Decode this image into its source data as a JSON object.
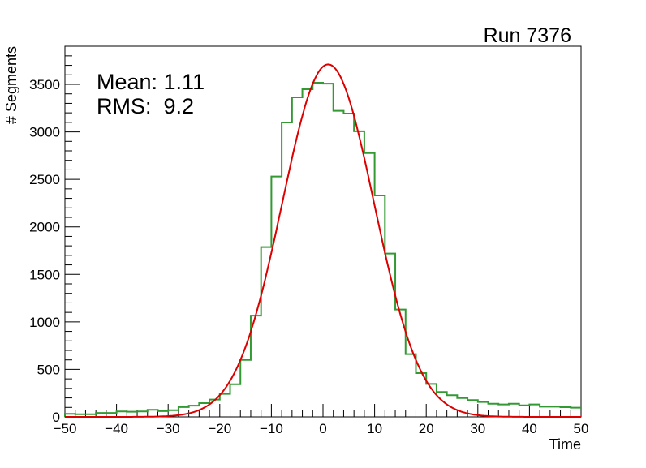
{
  "chart_data": {
    "type": "histogram",
    "title": "Run 7376",
    "xlabel": "Time",
    "ylabel": "# Segments",
    "xlim": [
      -50,
      50
    ],
    "ylim": [
      0,
      3880
    ],
    "x_ticks": [
      -50,
      -40,
      -30,
      -20,
      -10,
      0,
      10,
      20,
      30,
      40,
      50
    ],
    "x_tick_labels": [
      "−50",
      "−40",
      "−30",
      "−20",
      "−10",
      "0",
      "10",
      "20",
      "30",
      "40",
      "50"
    ],
    "y_ticks": [
      0,
      500,
      1000,
      1500,
      2000,
      2500,
      3000,
      3500
    ],
    "y_tick_labels": [
      "0",
      "500",
      "1000",
      "1500",
      "2000",
      "2500",
      "3000",
      "3500"
    ],
    "stats": [
      "Mean: 1.11",
      "RMS:  9.2"
    ],
    "bin_width": 2,
    "bin_edges_start": -50,
    "series": [
      {
        "name": "histogram",
        "color": "#339933",
        "values": [
          32,
          28,
          28,
          42,
          42,
          58,
          54,
          58,
          75,
          61,
          70,
          104,
          118,
          145,
          182,
          242,
          344,
          600,
          1066,
          1787,
          2530,
          3099,
          3363,
          3449,
          3517,
          3508,
          3221,
          3193,
          3006,
          2777,
          2331,
          1719,
          1130,
          660,
          461,
          347,
          262,
          228,
          199,
          177,
          157,
          139,
          131,
          139,
          122,
          131,
          108,
          108,
          102,
          97
        ]
      },
      {
        "name": "gaussian-fit",
        "color": "#dd0000",
        "function": "gaus",
        "constant": 3710,
        "mean": 1.0,
        "sigma": 8.9
      }
    ]
  }
}
